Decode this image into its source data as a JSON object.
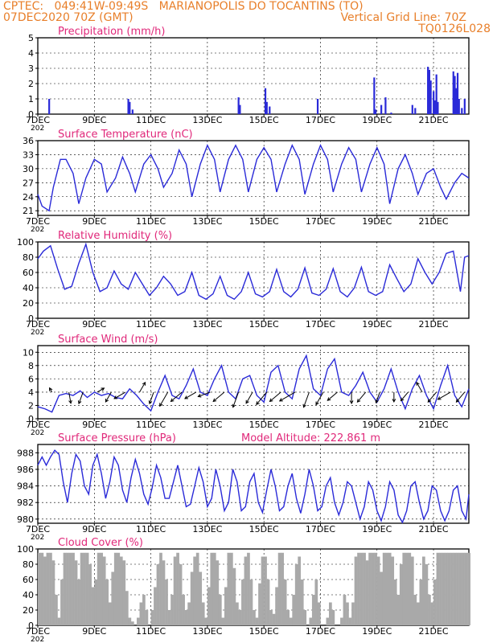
{
  "header": {
    "line1": "CPTEC:   049:41W-09:49S   MARIANOPOLIS DO TOCANTINS (TO)",
    "line2_left": "07DEC2020 70Z (GMT)",
    "line2_right": "Vertical Grid Line: 70Z",
    "line3_right": "TQ0126L028"
  },
  "colors": {
    "header": "#e87f2a",
    "title": "#e0287a",
    "series": "#2a2ad8",
    "cloud": "#a9a9a9",
    "grid": "#000000"
  },
  "x_axis": {
    "tick_labels": [
      "7DEC",
      "9DEC",
      "11DEC",
      "13DEC",
      "15DEC",
      "17DEC",
      "19DEC",
      "21DEC"
    ],
    "tick_days": [
      7,
      9,
      11,
      13,
      15,
      17,
      19,
      21
    ],
    "range_days": [
      7,
      22.25
    ],
    "year_fragment": "202"
  },
  "chart_data": [
    {
      "type": "bar",
      "title": "Precipitation (mm/h)",
      "ylim": [
        0,
        5
      ],
      "yticks": [
        0,
        1,
        2,
        3,
        4,
        5
      ],
      "x_unit": "day of December 2020",
      "x": [
        7.4,
        10.2,
        10.25,
        10.35,
        14.1,
        14.15,
        15.05,
        15.1,
        15.2,
        16.9,
        18.9,
        18.95,
        19.15,
        19.3,
        19.5,
        20.25,
        20.35,
        20.8,
        20.85,
        20.9,
        21.0,
        21.05,
        21.1,
        21.15,
        21.7,
        21.75,
        21.8,
        21.85,
        21.9,
        22.0,
        22.1
      ],
      "values": [
        1.0,
        1.0,
        0.8,
        0.3,
        1.1,
        0.6,
        1.7,
        0.8,
        0.5,
        1.0,
        2.4,
        0.3,
        0.6,
        1.1,
        0.1,
        0.6,
        0.4,
        3.1,
        2.9,
        2.2,
        1.5,
        0.9,
        2.6,
        0.8,
        2.8,
        2.5,
        1.7,
        2.7,
        1.0,
        0.4,
        1.0
      ]
    },
    {
      "type": "line",
      "title": "Surface Temperature (nC)",
      "ylim": [
        20,
        36
      ],
      "yticks": [
        21,
        24,
        27,
        30,
        33,
        36
      ],
      "x_unit": "day of December 2020",
      "x": [
        7.0,
        7.15,
        7.4,
        7.55,
        7.8,
        8.0,
        8.25,
        8.45,
        8.7,
        9.0,
        9.25,
        9.45,
        9.75,
        10.0,
        10.25,
        10.45,
        10.75,
        11.0,
        11.25,
        11.45,
        11.75,
        12.0,
        12.25,
        12.45,
        12.75,
        13.0,
        13.25,
        13.45,
        13.75,
        14.0,
        14.25,
        14.45,
        14.75,
        15.0,
        15.25,
        15.45,
        15.75,
        16.0,
        16.25,
        16.45,
        16.75,
        17.0,
        17.25,
        17.45,
        17.75,
        18.0,
        18.25,
        18.45,
        18.75,
        19.0,
        19.25,
        19.45,
        19.75,
        20.0,
        20.25,
        20.45,
        20.75,
        21.0,
        21.25,
        21.45,
        21.75,
        22.0,
        22.25
      ],
      "values": [
        24.5,
        22,
        21,
        26,
        32,
        32,
        29,
        22.5,
        28,
        32,
        31,
        25,
        28,
        32.5,
        29,
        25,
        31,
        33,
        30,
        26,
        29,
        34,
        31,
        24,
        31,
        35,
        32,
        25,
        32,
        35,
        32,
        25,
        32,
        34.5,
        32,
        25,
        31,
        35,
        32,
        24.5,
        31,
        35,
        32,
        25,
        31,
        34.5,
        32,
        25,
        31,
        34.5,
        31,
        22.5,
        30,
        33,
        29,
        24.5,
        29,
        30,
        26,
        23.5,
        27,
        29,
        28
      ]
    },
    {
      "type": "line",
      "title": "Relative Humidity (%)",
      "ylim": [
        0,
        100
      ],
      "yticks": [
        0,
        20,
        40,
        60,
        80,
        100
      ],
      "x_unit": "day of December 2020",
      "x": [
        7.0,
        7.2,
        7.45,
        7.7,
        7.95,
        8.2,
        8.45,
        8.7,
        8.95,
        9.2,
        9.45,
        9.7,
        9.95,
        10.2,
        10.45,
        10.7,
        10.95,
        11.2,
        11.45,
        11.7,
        11.95,
        12.2,
        12.45,
        12.7,
        12.95,
        13.2,
        13.45,
        13.7,
        13.95,
        14.2,
        14.45,
        14.7,
        14.95,
        15.2,
        15.45,
        15.7,
        15.95,
        16.2,
        16.45,
        16.7,
        16.95,
        17.2,
        17.45,
        17.7,
        17.95,
        18.2,
        18.45,
        18.7,
        18.95,
        19.2,
        19.45,
        19.7,
        19.95,
        20.2,
        20.45,
        20.7,
        20.95,
        21.2,
        21.45,
        21.7,
        21.95,
        22.1,
        22.25
      ],
      "values": [
        78,
        88,
        95,
        65,
        38,
        42,
        72,
        97,
        60,
        35,
        40,
        62,
        45,
        38,
        60,
        45,
        30,
        40,
        55,
        45,
        30,
        35,
        60,
        30,
        25,
        32,
        55,
        30,
        25,
        35,
        60,
        32,
        28,
        35,
        64,
        35,
        28,
        38,
        66,
        33,
        30,
        38,
        65,
        35,
        28,
        40,
        67,
        35,
        30,
        35,
        70,
        52,
        35,
        45,
        78,
        60,
        45,
        60,
        85,
        88,
        35,
        80,
        82
      ]
    },
    {
      "type": "line",
      "title": "Surface Wind (m/s)",
      "ylim": [
        0,
        11
      ],
      "yticks": [
        0,
        2,
        4,
        6,
        8,
        10
      ],
      "x_unit": "day of December 2020",
      "x": [
        7.0,
        7.25,
        7.5,
        7.75,
        8.0,
        8.25,
        8.5,
        8.75,
        9.0,
        9.25,
        9.5,
        9.75,
        10.0,
        10.25,
        10.5,
        10.75,
        11.0,
        11.25,
        11.5,
        11.75,
        12.0,
        12.25,
        12.5,
        12.75,
        13.0,
        13.25,
        13.5,
        13.75,
        14.0,
        14.25,
        14.5,
        14.75,
        15.0,
        15.25,
        15.5,
        15.75,
        16.0,
        16.25,
        16.5,
        16.75,
        17.0,
        17.25,
        17.5,
        17.75,
        18.0,
        18.25,
        18.5,
        18.75,
        19.0,
        19.25,
        19.5,
        19.75,
        20.0,
        20.25,
        20.5,
        20.75,
        21.0,
        21.25,
        21.5,
        21.75,
        22.0,
        22.25
      ],
      "values": [
        1.8,
        1.5,
        1.0,
        3.5,
        3.8,
        3.5,
        4.2,
        3.2,
        4.0,
        3.5,
        3.8,
        3.2,
        3.0,
        4.5,
        3.5,
        2.2,
        1.2,
        4.0,
        6.5,
        3.5,
        3.0,
        5.0,
        7.5,
        4.0,
        3.5,
        6.0,
        8.0,
        4.0,
        3.0,
        6.0,
        6.5,
        3.5,
        2.5,
        7.0,
        8.0,
        4.0,
        3.0,
        7.5,
        9.5,
        4.5,
        3.5,
        7.5,
        9.0,
        4.0,
        3.5,
        5.0,
        7.0,
        4.0,
        2.5,
        4.5,
        7.5,
        4.0,
        1.5,
        4.5,
        6.5,
        3.5,
        1.5,
        5.0,
        8.0,
        3.5,
        1.8,
        4.5
      ],
      "arrows": {
        "x": [
          7.5,
          8.1,
          8.6,
          9.1,
          9.6,
          10.1,
          10.6,
          11.1,
          11.6,
          12.1,
          12.6,
          13.1,
          13.6,
          14.1,
          14.6,
          15.1,
          15.6,
          16.1,
          16.6,
          17.1,
          17.6,
          18.1,
          18.6,
          19.1,
          19.6,
          20.1,
          20.6,
          21.1,
          21.6,
          22.1
        ],
        "dir_deg": [
          330,
          170,
          200,
          60,
          210,
          240,
          30,
          200,
          210,
          230,
          240,
          250,
          230,
          200,
          210,
          220,
          230,
          240,
          200,
          210,
          230,
          180,
          220,
          200,
          180,
          220,
          330,
          220,
          240,
          220
        ],
        "speed": [
          1.5,
          3.5,
          3.8,
          2.5,
          3.5,
          4.0,
          3.5,
          3.8,
          5.0,
          4.5,
          4.0,
          4.0,
          4.5,
          5.0,
          4.0,
          5.0,
          4.5,
          5.5,
          5.0,
          4.5,
          4.0,
          3.5,
          4.0,
          3.5,
          3.0,
          3.5,
          3.5,
          4.0,
          4.5,
          4.0
        ]
      }
    },
    {
      "type": "line",
      "title": "Surface Pressure (hPa)",
      "subtitle": "Model Altitude: 222.861  m",
      "ylim": [
        979.5,
        989
      ],
      "yticks": [
        980,
        982,
        984,
        986,
        988
      ],
      "x_unit": "day of December 2020",
      "x": [
        7.0,
        7.15,
        7.3,
        7.45,
        7.6,
        7.75,
        7.9,
        8.05,
        8.2,
        8.35,
        8.5,
        8.65,
        8.8,
        8.95,
        9.1,
        9.25,
        9.4,
        9.55,
        9.7,
        9.85,
        10.0,
        10.15,
        10.3,
        10.45,
        10.6,
        10.75,
        10.9,
        11.05,
        11.2,
        11.35,
        11.5,
        11.65,
        11.8,
        11.95,
        12.1,
        12.25,
        12.4,
        12.55,
        12.7,
        12.85,
        13.0,
        13.15,
        13.3,
        13.45,
        13.6,
        13.75,
        13.9,
        14.05,
        14.2,
        14.35,
        14.5,
        14.65,
        14.8,
        14.95,
        15.1,
        15.25,
        15.4,
        15.55,
        15.7,
        15.85,
        16.0,
        16.15,
        16.3,
        16.45,
        16.6,
        16.75,
        16.9,
        17.05,
        17.2,
        17.35,
        17.5,
        17.65,
        17.8,
        17.95,
        18.1,
        18.25,
        18.4,
        18.55,
        18.7,
        18.85,
        19.0,
        19.15,
        19.3,
        19.45,
        19.6,
        19.75,
        19.9,
        20.05,
        20.2,
        20.35,
        20.5,
        20.65,
        20.8,
        20.95,
        21.1,
        21.25,
        21.4,
        21.55,
        21.7,
        21.85,
        22.0,
        22.15,
        22.25
      ],
      "values": [
        986.5,
        987.5,
        986.5,
        987.5,
        988.3,
        987.8,
        984.5,
        982.0,
        985.5,
        987.8,
        987.0,
        984.0,
        983.0,
        986.5,
        987.8,
        985.5,
        982.5,
        984.5,
        987.5,
        986.5,
        983.5,
        982.0,
        985.0,
        987.2,
        985.5,
        983.0,
        981.8,
        983.8,
        986.5,
        985.0,
        982.5,
        982.5,
        984.5,
        986.5,
        984.0,
        981.5,
        981.8,
        984.0,
        986.2,
        984.5,
        981.5,
        982.5,
        986.0,
        984.0,
        981.0,
        982.0,
        986.0,
        984.5,
        981.0,
        981.5,
        984.5,
        985.5,
        982.0,
        980.8,
        983.5,
        986.0,
        984.0,
        981.0,
        981.5,
        984.0,
        985.5,
        982.5,
        980.7,
        983.0,
        986.0,
        984.0,
        981.0,
        981.5,
        984.0,
        985.0,
        982.0,
        980.5,
        982.0,
        984.5,
        984.0,
        982.0,
        980.0,
        981.5,
        984.5,
        983.5,
        981.0,
        979.8,
        981.5,
        984.5,
        983.5,
        980.5,
        979.6,
        981.0,
        984.0,
        984.5,
        982.0,
        980.0,
        981.0,
        984.0,
        983.5,
        981.0,
        979.8,
        981.0,
        983.5,
        984.0,
        981.0,
        980.0,
        983.0
      ]
    },
    {
      "type": "area",
      "title": "Cloud Cover (%)",
      "ylim": [
        0,
        100
      ],
      "yticks": [
        0,
        20,
        40,
        60,
        80,
        100
      ],
      "x_unit": "day of December 2020",
      "x": [
        7.0,
        7.1,
        7.2,
        7.3,
        7.4,
        7.5,
        7.6,
        7.7,
        7.8,
        7.9,
        8.0,
        8.1,
        8.2,
        8.3,
        8.4,
        8.5,
        8.6,
        8.7,
        8.8,
        8.9,
        9.0,
        9.1,
        9.2,
        9.3,
        9.4,
        9.5,
        9.6,
        9.7,
        9.8,
        9.9,
        10.0,
        10.1,
        10.2,
        10.3,
        10.4,
        10.5,
        10.6,
        10.7,
        10.8,
        10.9,
        11.0,
        11.1,
        11.2,
        11.3,
        11.4,
        11.5,
        11.6,
        11.7,
        11.8,
        11.9,
        12.0,
        12.1,
        12.2,
        12.3,
        12.4,
        12.5,
        12.6,
        12.7,
        12.8,
        12.9,
        13.0,
        13.1,
        13.2,
        13.3,
        13.4,
        13.5,
        13.6,
        13.7,
        13.8,
        13.9,
        14.0,
        14.1,
        14.2,
        14.3,
        14.4,
        14.5,
        14.6,
        14.7,
        14.8,
        14.9,
        15.0,
        15.1,
        15.2,
        15.3,
        15.4,
        15.5,
        15.6,
        15.7,
        15.8,
        15.9,
        16.0,
        16.1,
        16.2,
        16.3,
        16.4,
        16.5,
        16.6,
        16.7,
        16.8,
        16.9,
        17.0,
        17.1,
        17.2,
        17.3,
        17.4,
        17.5,
        17.6,
        17.7,
        17.8,
        17.9,
        18.0,
        18.1,
        18.2,
        18.3,
        18.4,
        18.5,
        18.6,
        18.7,
        18.8,
        18.9,
        19.0,
        19.1,
        19.2,
        19.3,
        19.4,
        19.5,
        19.6,
        19.7,
        19.8,
        19.9,
        20.0,
        20.1,
        20.2,
        20.3,
        20.4,
        20.5,
        20.6,
        20.7,
        20.8,
        20.9,
        21.0,
        21.1,
        21.2,
        21.3,
        21.4,
        21.5,
        21.6,
        21.7,
        21.8,
        21.9,
        22.0,
        22.1,
        22.2
      ],
      "values": [
        95,
        95,
        90,
        95,
        95,
        85,
        40,
        10,
        60,
        95,
        95,
        95,
        95,
        85,
        60,
        95,
        95,
        95,
        80,
        50,
        60,
        95,
        95,
        90,
        60,
        30,
        70,
        95,
        95,
        90,
        85,
        45,
        10,
        5,
        0,
        10,
        30,
        40,
        20,
        0,
        20,
        50,
        80,
        95,
        85,
        60,
        20,
        40,
        90,
        95,
        80,
        40,
        20,
        30,
        70,
        90,
        95,
        70,
        30,
        10,
        50,
        95,
        95,
        85,
        40,
        10,
        50,
        95,
        95,
        75,
        30,
        20,
        60,
        90,
        95,
        60,
        20,
        10,
        55,
        90,
        90,
        60,
        20,
        15,
        50,
        95,
        95,
        60,
        20,
        10,
        40,
        80,
        90,
        60,
        20,
        0,
        10,
        40,
        60,
        30,
        0,
        0,
        10,
        30,
        20,
        0,
        0,
        10,
        40,
        30,
        10,
        30,
        90,
        95,
        95,
        95,
        85,
        95,
        95,
        95,
        90,
        70,
        95,
        95,
        95,
        90,
        60,
        40,
        80,
        95,
        95,
        95,
        90,
        40,
        30,
        60,
        90,
        80,
        40,
        30,
        60,
        95,
        95,
        95,
        95,
        95,
        95,
        95,
        95,
        95,
        95,
        95,
        95
      ]
    }
  ]
}
